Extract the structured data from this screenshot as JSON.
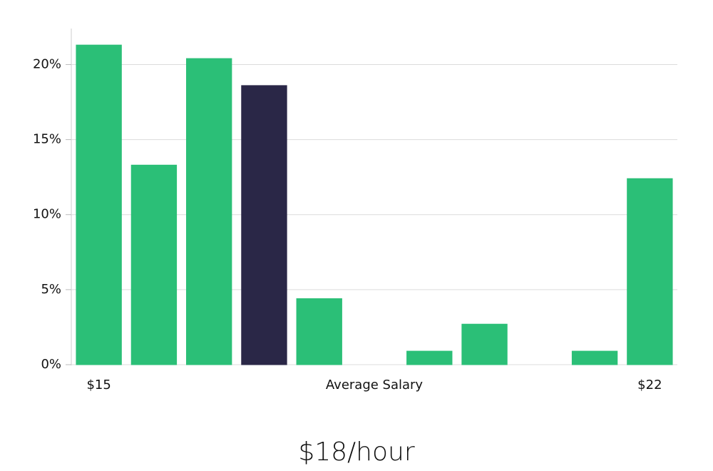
{
  "chart_data": {
    "type": "bar",
    "subtitle": "$18/hour",
    "categories": [
      "$15",
      null,
      null,
      null,
      null,
      "Average Salary",
      null,
      null,
      null,
      null,
      "$22"
    ],
    "values": [
      21.3,
      13.3,
      20.4,
      18.6,
      4.4,
      0,
      0.9,
      2.7,
      0,
      0.9,
      12.4
    ],
    "colors": [
      "#2bbf77",
      "#2bbf77",
      "#2bbf77",
      "#2a2747",
      "#2bbf77",
      "#2bbf77",
      "#2bbf77",
      "#2bbf77",
      "#2bbf77",
      "#2bbf77",
      "#2bbf77"
    ],
    "ylim": [
      0,
      22.4
    ],
    "yticks": [
      {
        "value": 0,
        "label": "0%"
      },
      {
        "value": 5,
        "label": "5%"
      },
      {
        "value": 10,
        "label": "10%"
      },
      {
        "value": 15,
        "label": "15%"
      },
      {
        "value": 20,
        "label": "20%"
      }
    ],
    "grid": true
  }
}
